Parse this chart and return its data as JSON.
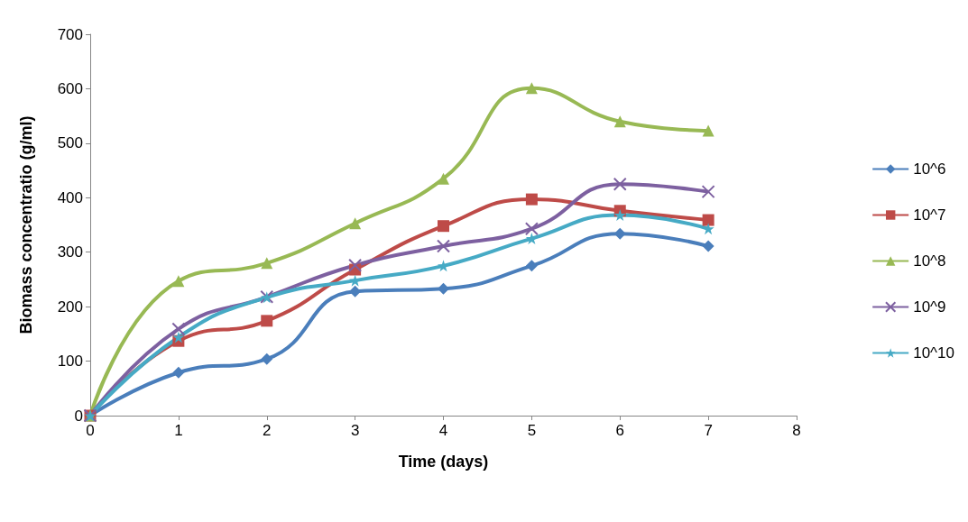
{
  "chart_data": {
    "type": "line",
    "xlabel": "Time (days)",
    "ylabel": "Biomass concentratio (g/ml)",
    "x": [
      0,
      1,
      2,
      3,
      4,
      5,
      6,
      7
    ],
    "series": [
      {
        "name": "10^6",
        "color": "#4a7ebb",
        "marker": "diamond",
        "values": [
          0,
          79,
          104,
          228,
          233,
          275,
          334,
          311
        ]
      },
      {
        "name": "10^7",
        "color": "#be4b48",
        "marker": "square",
        "values": [
          0,
          137,
          174,
          268,
          348,
          397,
          376,
          359
        ]
      },
      {
        "name": "10^8",
        "color": "#98b954",
        "marker": "triangle",
        "values": [
          0,
          247,
          280,
          353,
          435,
          601,
          540,
          523
        ]
      },
      {
        "name": "10^9",
        "color": "#7d60a0",
        "marker": "cross",
        "values": [
          0,
          159,
          218,
          276,
          311,
          343,
          425,
          411
        ]
      },
      {
        "name": "10^10",
        "color": "#46aac5",
        "marker": "star",
        "values": [
          0,
          144,
          217,
          248,
          275,
          325,
          368,
          343
        ]
      }
    ],
    "xlim": [
      0,
      8
    ],
    "xticks": [
      0,
      1,
      2,
      3,
      4,
      5,
      6,
      7,
      8
    ],
    "ylim": [
      0,
      700
    ],
    "yticks": [
      0,
      100,
      200,
      300,
      400,
      500,
      600,
      700
    ],
    "grid": false,
    "legend": "right",
    "line_style": "solid"
  }
}
